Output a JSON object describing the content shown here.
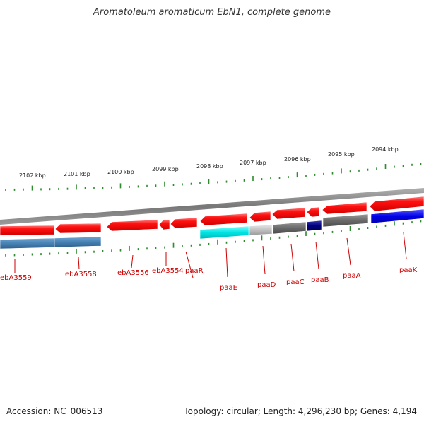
{
  "title": "Aromatoleum aromaticum EbN1, complete genome",
  "footer": {
    "accession": "Accession: NC_006513",
    "topology": "Topology: circular; Length: 4,296,230 bp; Genes: 4,194"
  },
  "colors": {
    "backbone": "#777777",
    "tick": "#2e8b2e",
    "label": "#cc0000",
    "cds_forward": "#ff1010",
    "cds_steelblue": "#4682b4",
    "cds_cyan": "#00e5e5",
    "cds_lightgray": "#c0c0c0",
    "cds_darkgray": "#6a6a6a",
    "cds_navy": "#000080",
    "cds_blue": "#0000e8"
  },
  "scale_labels": [
    "2102 kbp",
    "2101 kbp",
    "2100 kbp",
    "2099 kbp",
    "2098 kbp",
    "2097 kbp",
    "2096 kbp",
    "2095 kbp",
    "2094 kbp"
  ],
  "gene_labels": [
    "ebA3559",
    "ebA3558",
    "ebA3556",
    "ebA3554",
    "paaR",
    "paaE",
    "paaD",
    "paaC",
    "paaB",
    "paaA",
    "paaK"
  ]
}
